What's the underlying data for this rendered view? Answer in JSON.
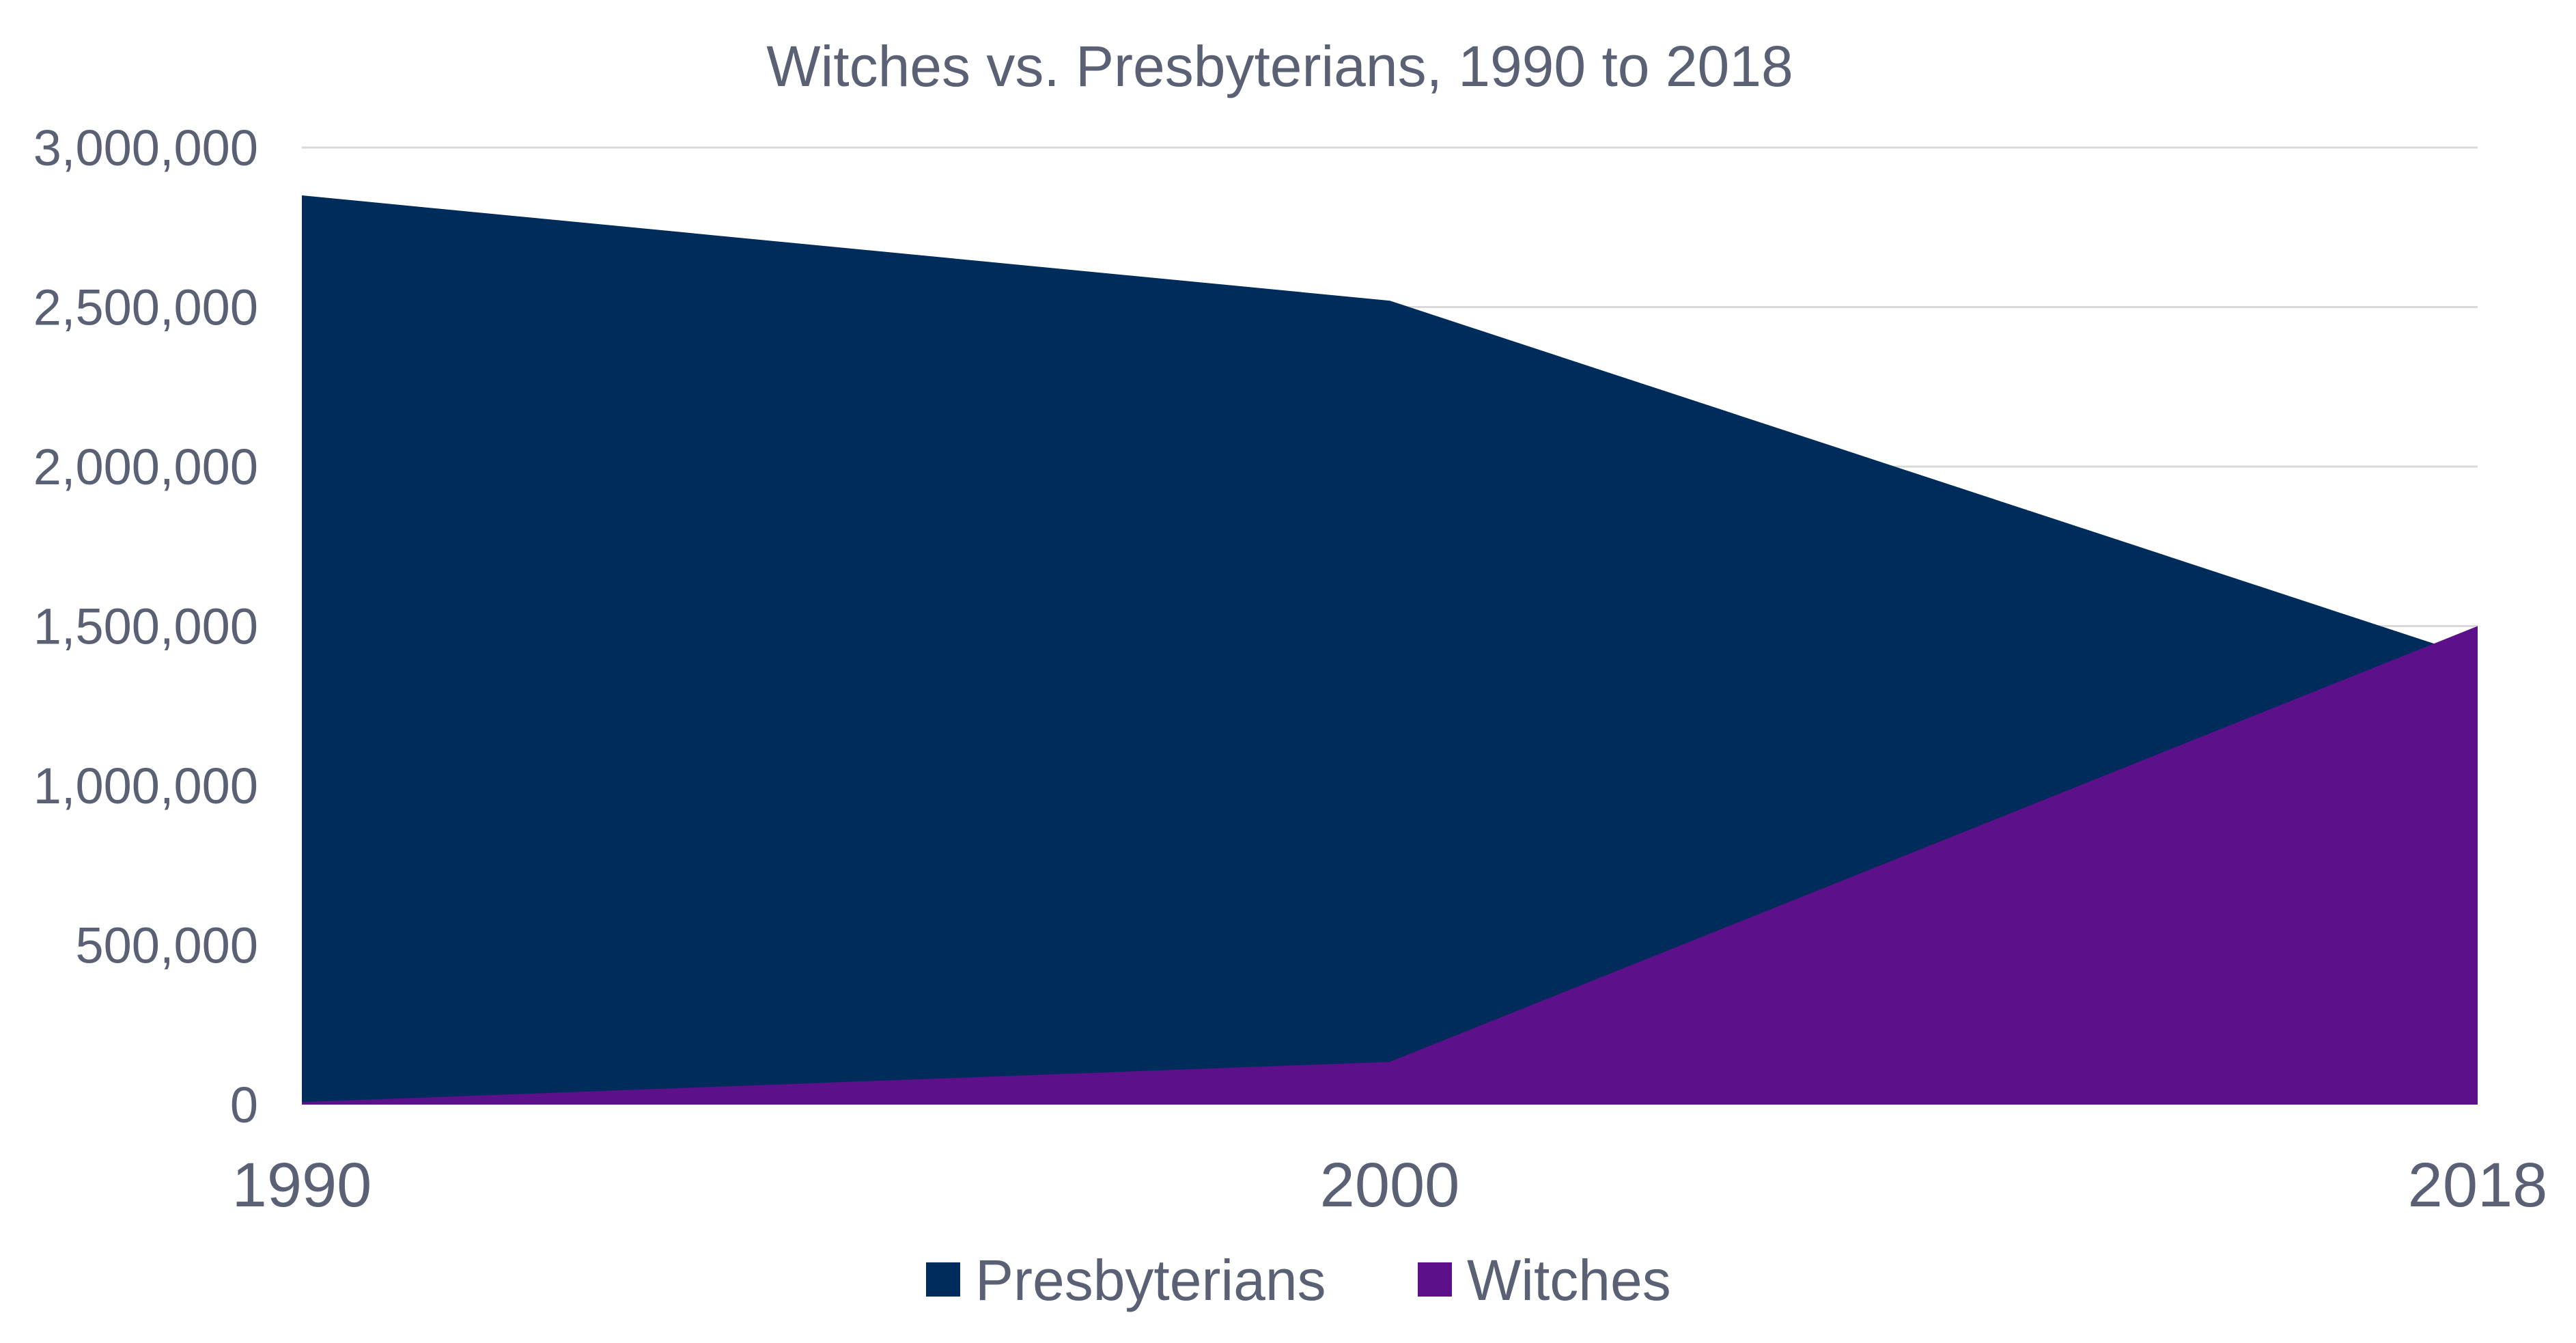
{
  "chart_data": {
    "type": "area",
    "title": "Witches vs. Presbyterians, 1990 to 2018",
    "xlabel": "",
    "ylabel": "",
    "x": [
      "1990",
      "2000",
      "2018"
    ],
    "ylim": [
      0,
      3000000
    ],
    "yticks": [
      0,
      500000,
      1000000,
      1500000,
      2000000,
      2500000,
      3000000
    ],
    "ytick_labels": [
      "0",
      "500,000",
      "1,000,000",
      "1,500,000",
      "2,000,000",
      "2,500,000",
      "3,000,000"
    ],
    "grid": true,
    "legend_position": "bottom",
    "series": [
      {
        "name": "Presbyterians",
        "values": [
          2850000,
          2520000,
          1400000
        ],
        "color": "#002c5b"
      },
      {
        "name": "Witches",
        "values": [
          8000,
          134000,
          1500000
        ],
        "color": "#5c108a"
      }
    ]
  }
}
